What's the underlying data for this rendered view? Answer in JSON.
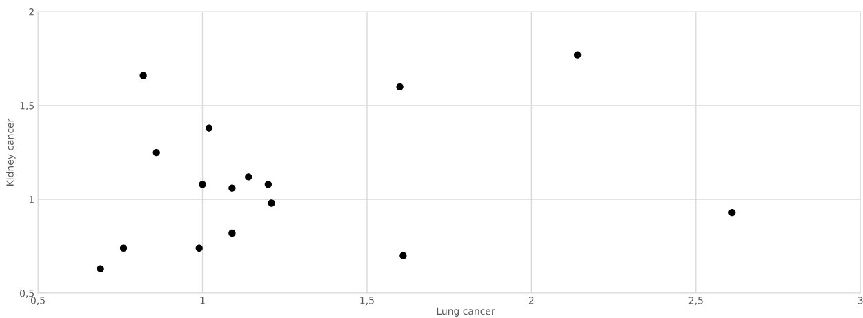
{
  "chart_data": {
    "type": "scatter",
    "xlabel": "Lung cancer",
    "ylabel": "Kidney cancer",
    "x": [
      0.69,
      0.76,
      0.82,
      0.86,
      0.99,
      1.0,
      1.02,
      1.09,
      1.09,
      1.14,
      1.2,
      1.21,
      1.6,
      1.61,
      2.14,
      2.61
    ],
    "series": [
      {
        "color": "#000000",
        "values": [
          0.63,
          0.74,
          1.66,
          1.25,
          0.74,
          1.08,
          1.38,
          1.06,
          0.82,
          1.12,
          1.08,
          0.98,
          1.6,
          0.7,
          1.77,
          0.93
        ]
      }
    ],
    "xlim": [
      0.5,
      3
    ],
    "ylim": [
      0.5,
      2
    ],
    "xticks": [
      {
        "value": 0.5,
        "label": "0,5"
      },
      1,
      {
        "value": 1.5,
        "label": "1,5"
      },
      2,
      {
        "value": 2.5,
        "label": "2,5"
      },
      3
    ],
    "yticks": [
      {
        "value": 0.5,
        "label": "0,5"
      },
      1,
      {
        "value": 1.5,
        "label": "1,5"
      },
      2
    ],
    "grid": true,
    "marker": "circle"
  }
}
